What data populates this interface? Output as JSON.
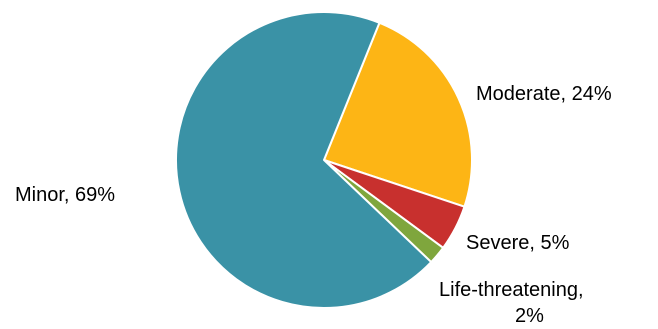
{
  "chart_data": {
    "type": "pie",
    "slices": [
      {
        "name": "Moderate",
        "value": 24,
        "color": "#FDB515",
        "label_lines": [
          "Moderate, 24%"
        ]
      },
      {
        "name": "Severe",
        "value": 5,
        "color": "#C8302E",
        "label_lines": [
          "Severe, 5%"
        ]
      },
      {
        "name": "Life-threatening",
        "value": 2,
        "color": "#7FA63D",
        "label_lines": [
          "Life-threatening,",
          "2%"
        ]
      },
      {
        "name": "Minor",
        "value": 69,
        "color": "#3A92A6",
        "label_lines": [
          "Minor, 69%"
        ]
      }
    ],
    "start_angle_deg": 22,
    "direction": "clockwise",
    "slice_border_color": "#ffffff",
    "legend": "none"
  }
}
